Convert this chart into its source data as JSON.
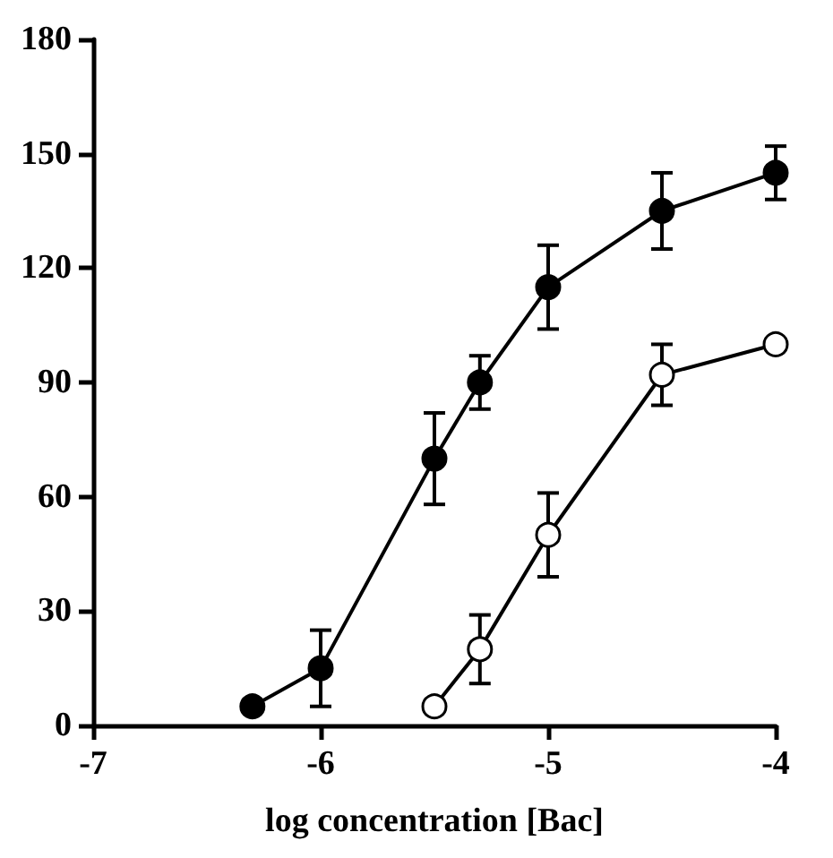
{
  "chart_data": {
    "type": "line",
    "xlabel": "log concentration [Bac]",
    "xlim": [
      -7,
      -4
    ],
    "xticks": [
      -7,
      -6,
      -5,
      -4
    ],
    "ylim": [
      0,
      180
    ],
    "yticks": [
      0,
      30,
      60,
      90,
      120,
      150,
      180
    ],
    "grid": false,
    "marker": "circle",
    "line_style": "solid",
    "series": [
      {
        "color": "#000000",
        "x": [
          -6.3,
          -6,
          -5.5,
          -5.3,
          -5,
          -4.5,
          -4
        ],
        "values": [
          5,
          15,
          70,
          90,
          115,
          135,
          145
        ],
        "errors": [
          null,
          10,
          12,
          7,
          11,
          10,
          7
        ]
      },
      {
        "color": "#000000",
        "x": [
          -5.5,
          -5.3,
          -5,
          -4.5,
          -4
        ],
        "values": [
          5,
          20,
          50,
          92,
          100
        ],
        "errors": [
          null,
          9,
          11,
          8,
          null
        ]
      }
    ]
  }
}
